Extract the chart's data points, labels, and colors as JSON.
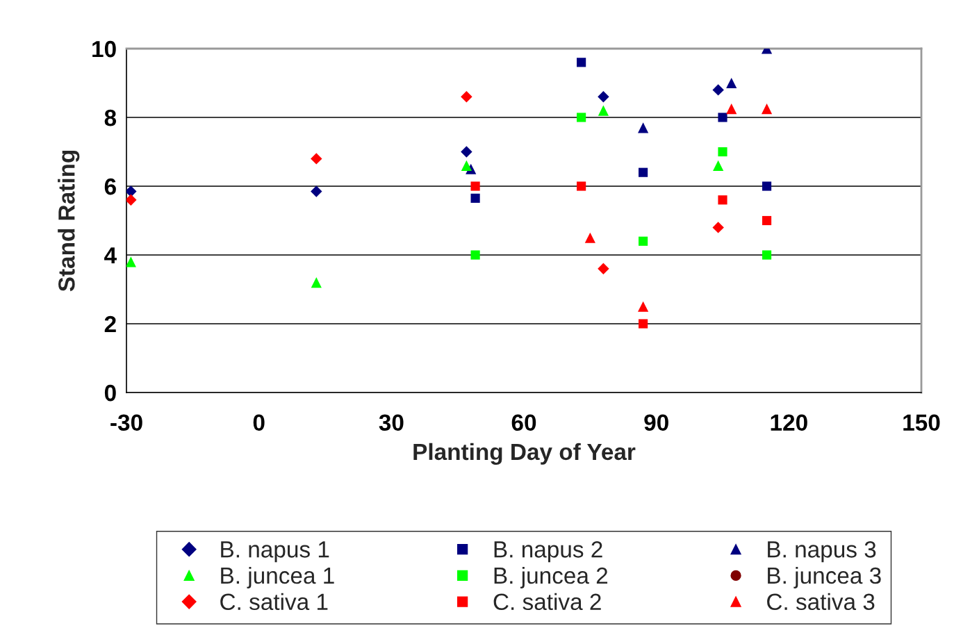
{
  "chart_data": {
    "type": "scatter",
    "xlabel": "Planting Day of Year",
    "ylabel": "Stand Rating",
    "xlim": [
      -30,
      150
    ],
    "xticks": [
      -30,
      0,
      30,
      60,
      90,
      120,
      150
    ],
    "ylim": [
      0,
      10
    ],
    "yticks": [
      0,
      2,
      4,
      6,
      8,
      10
    ],
    "grid": "y",
    "legend": "bottom",
    "series": [
      {
        "name": "B. napus 1",
        "color": "#000080",
        "marker": "diamond",
        "x": [
          -29,
          13,
          47,
          78,
          104
        ],
        "values": [
          5.85,
          5.85,
          7.0,
          8.6,
          8.8
        ]
      },
      {
        "name": "B. napus 2",
        "color": "#000080",
        "marker": "square",
        "x": [
          49,
          73,
          87,
          105,
          115
        ],
        "values": [
          5.65,
          9.6,
          6.4,
          8.0,
          6.0
        ]
      },
      {
        "name": "B. napus 3",
        "color": "#000080",
        "marker": "triangle",
        "x": [
          48,
          87,
          107,
          115
        ],
        "values": [
          6.5,
          7.7,
          9.0,
          10.0
        ]
      },
      {
        "name": "B. juncea 1",
        "color": "#00ff00",
        "marker": "triangle",
        "x": [
          -29,
          13,
          47,
          78,
          104
        ],
        "values": [
          3.8,
          3.2,
          6.6,
          8.2,
          6.6
        ]
      },
      {
        "name": "B. juncea 2",
        "color": "#00ff00",
        "marker": "square",
        "x": [
          49,
          73,
          87,
          105,
          115
        ],
        "values": [
          4.0,
          8.0,
          4.4,
          7.0,
          4.0
        ]
      },
      {
        "name": "B. juncea 3",
        "color": "#800000",
        "marker": "circle"
      },
      {
        "name": "C. sativa 1",
        "color": "#ff0000",
        "marker": "diamond",
        "x": [
          -29,
          13,
          47,
          78,
          104
        ],
        "values": [
          5.6,
          6.8,
          8.6,
          3.6,
          4.8
        ]
      },
      {
        "name": "C. sativa 2",
        "color": "#ff0000",
        "marker": "square",
        "x": [
          49,
          73,
          87,
          105,
          115
        ],
        "values": [
          6.0,
          6.0,
          2.0,
          5.6,
          5.0
        ]
      },
      {
        "name": "C. sativa 3",
        "color": "#ff0000",
        "marker": "triangle",
        "x": [
          75,
          87,
          107,
          115
        ],
        "values": [
          4.5,
          2.5,
          8.25,
          8.25
        ]
      }
    ]
  }
}
